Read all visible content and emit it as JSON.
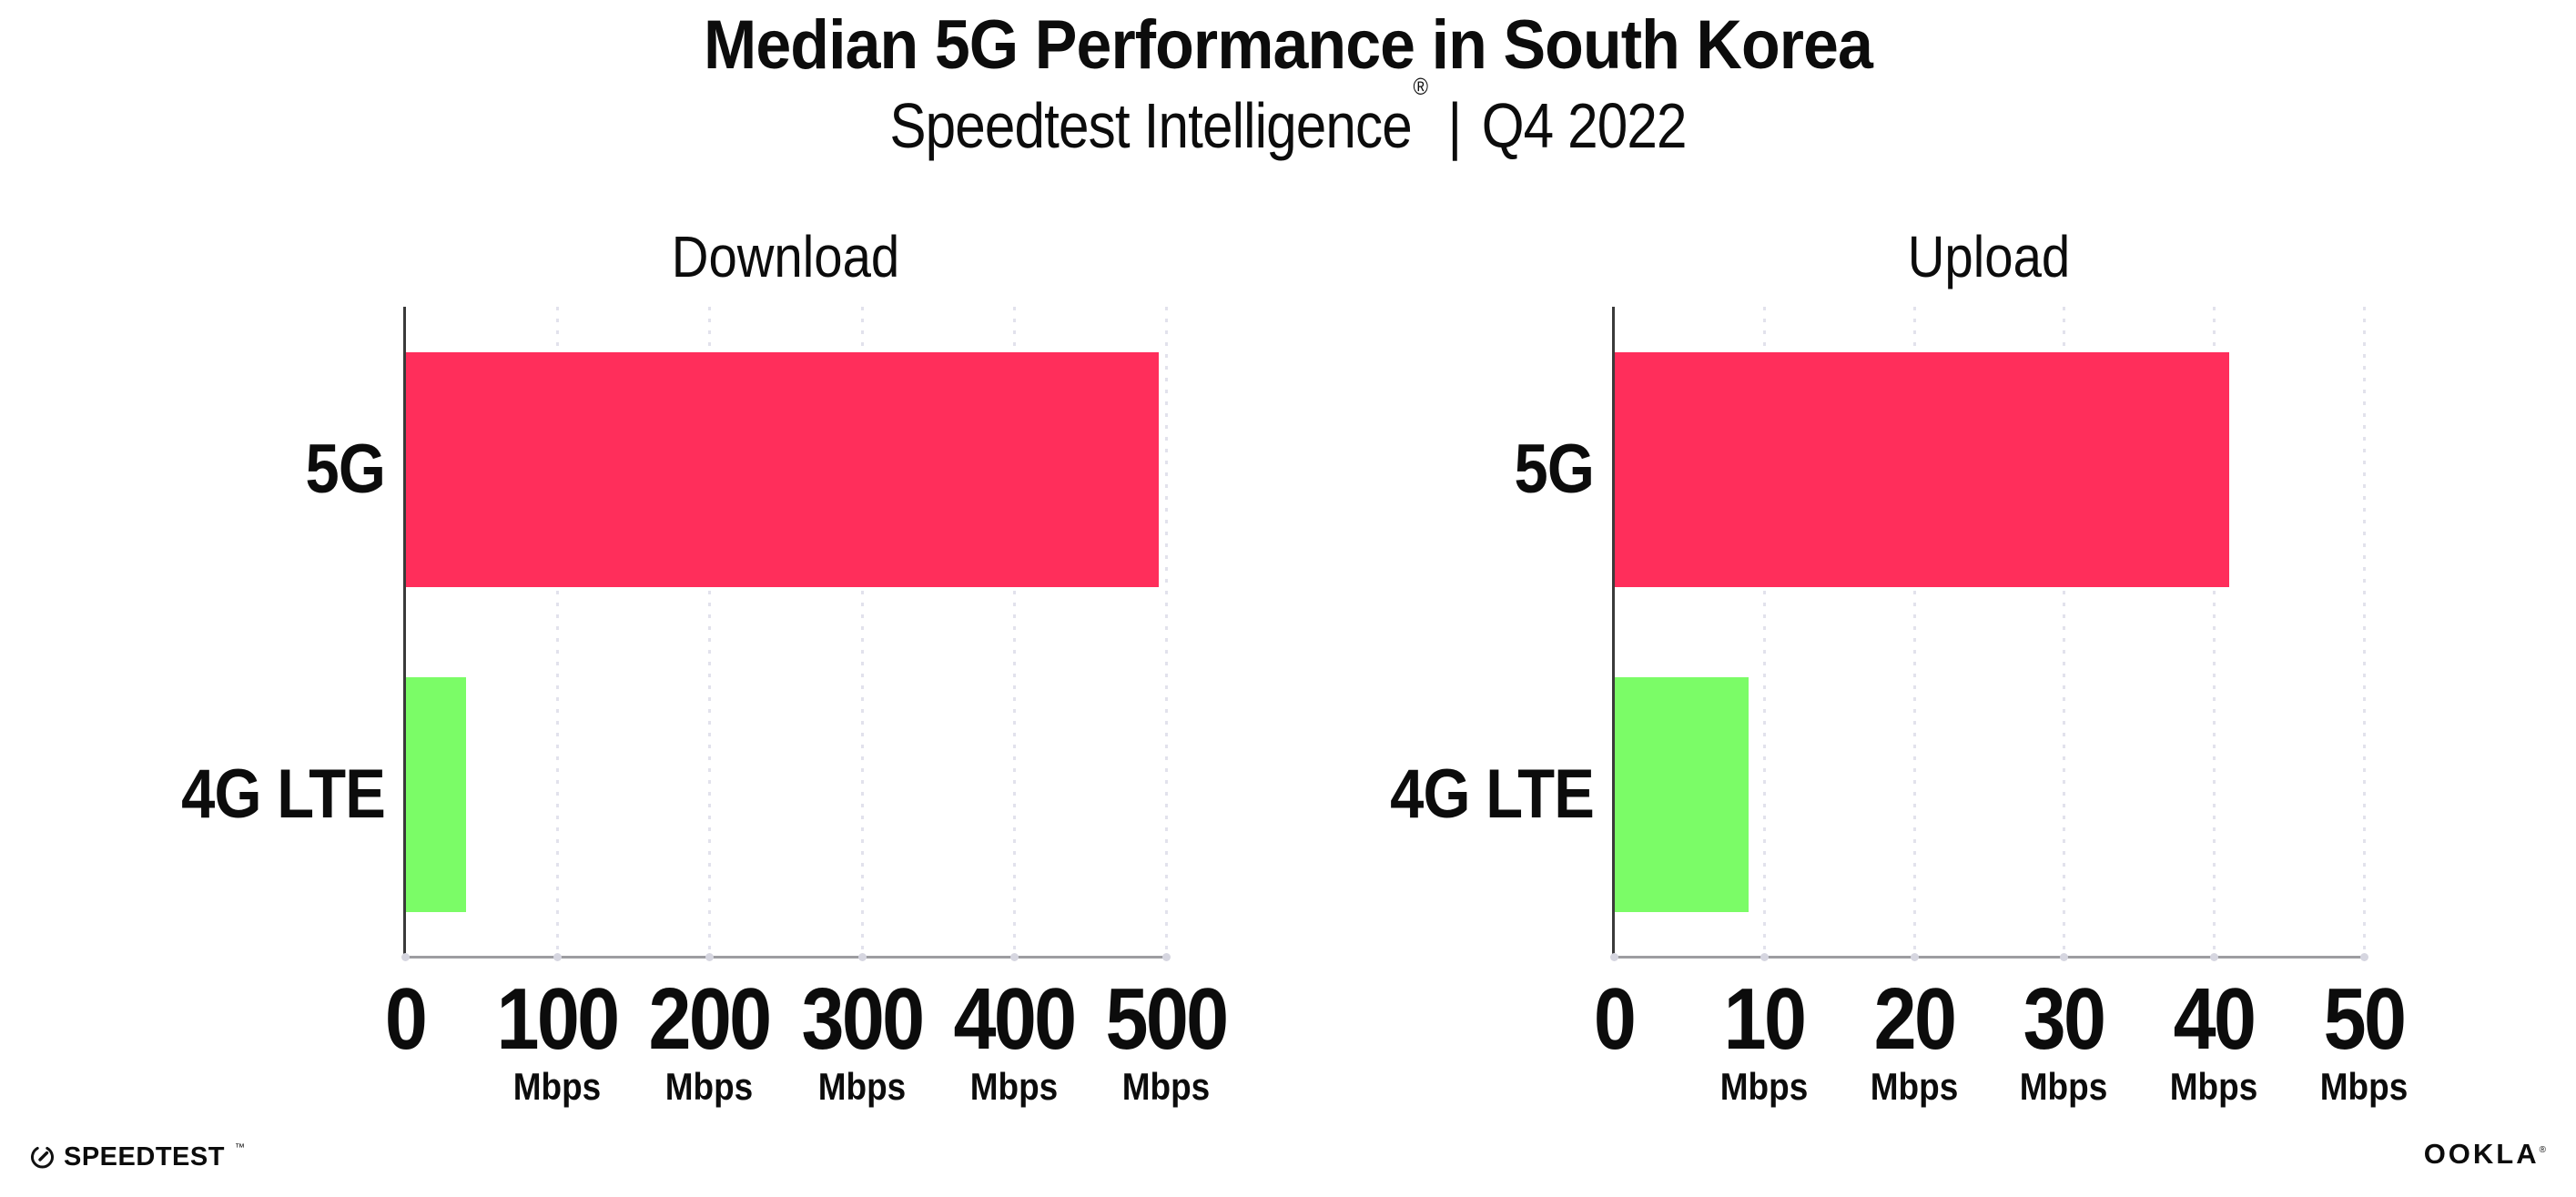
{
  "header": {
    "title": "Median 5G Performance in South Korea",
    "subtitle_brand": "Speedtest Intelligence",
    "subtitle_registered": "®",
    "subtitle_separator": "|",
    "subtitle_period": "Q4 2022"
  },
  "footer": {
    "speedtest_logo_text": "SPEEDTEST",
    "speedtest_trademark": "™",
    "ookla_logo_text": "OOKLA",
    "ookla_registered": "®"
  },
  "colors": {
    "bar_5g": "#FF2E5B",
    "bar_4g_lte": "#7BFC67",
    "axis_left": "#3A3A3A",
    "axis_bottom": "#9D9DA1",
    "gridline": "#E2E2EC",
    "text": "#0C0C0C"
  },
  "chart_data": [
    {
      "type": "bar",
      "orientation": "horizontal",
      "title": "Download",
      "categories": [
        "5G",
        "4G LTE"
      ],
      "values": [
        495,
        40
      ],
      "unit": "Mbps",
      "xlim": [
        0,
        500
      ],
      "xticks": [
        0,
        100,
        200,
        300,
        400,
        500
      ],
      "xtick_unit_suffix": "Mbps",
      "zero_tick_unit_hidden": true,
      "grid": "vertical-dotted",
      "legend": "none",
      "bar_colors": [
        "#FF2E5B",
        "#7BFC67"
      ]
    },
    {
      "type": "bar",
      "orientation": "horizontal",
      "title": "Upload",
      "categories": [
        "5G",
        "4G LTE"
      ],
      "values": [
        41,
        9
      ],
      "unit": "Mbps",
      "xlim": [
        0,
        50
      ],
      "xticks": [
        0,
        10,
        20,
        30,
        40,
        50
      ],
      "xtick_unit_suffix": "Mbps",
      "zero_tick_unit_hidden": true,
      "grid": "vertical-dotted",
      "legend": "none",
      "bar_colors": [
        "#FF2E5B",
        "#7BFC67"
      ]
    }
  ]
}
